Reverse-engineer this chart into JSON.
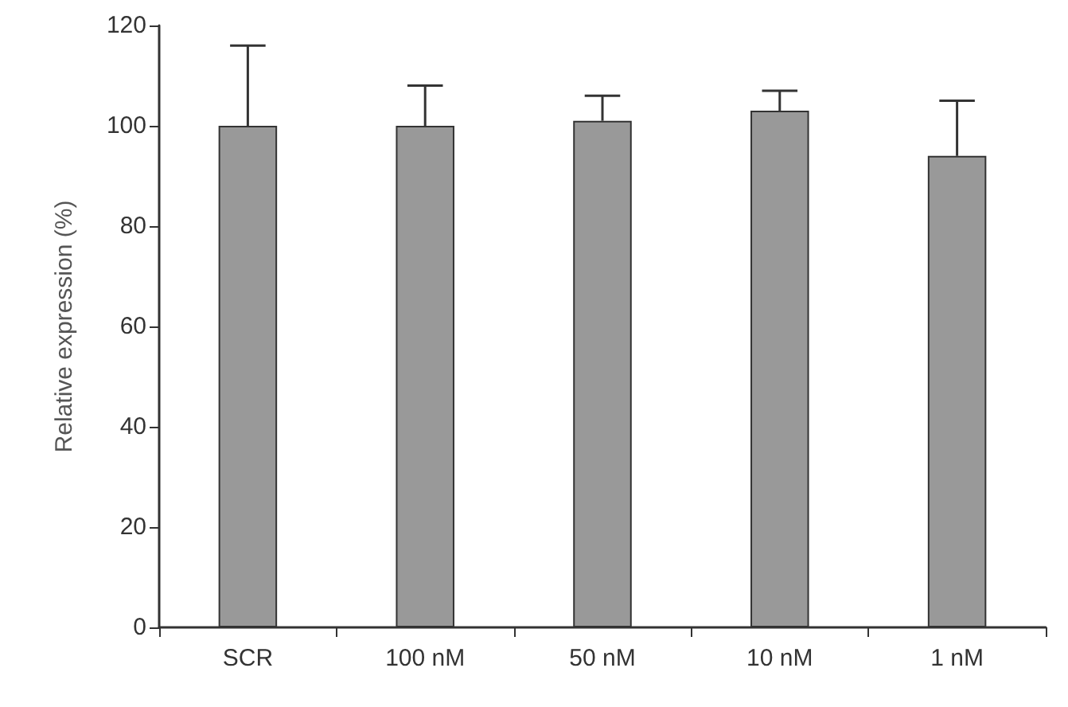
{
  "chart_data": {
    "type": "bar",
    "ylabel": "Relative expression (%)",
    "categories": [
      "SCR",
      "100 nM",
      "50 nM",
      "10 nM",
      "1 nM"
    ],
    "values": [
      100,
      100,
      101,
      103,
      94
    ],
    "errors": [
      [
        100,
        116
      ],
      [
        100,
        108
      ],
      [
        101,
        106
      ],
      [
        103,
        107
      ],
      [
        94,
        105
      ]
    ],
    "color": "#999999",
    "ylim": [
      0,
      120
    ],
    "yticks": [
      0,
      20,
      40,
      60,
      80,
      100,
      120
    ],
    "grid": false
  }
}
